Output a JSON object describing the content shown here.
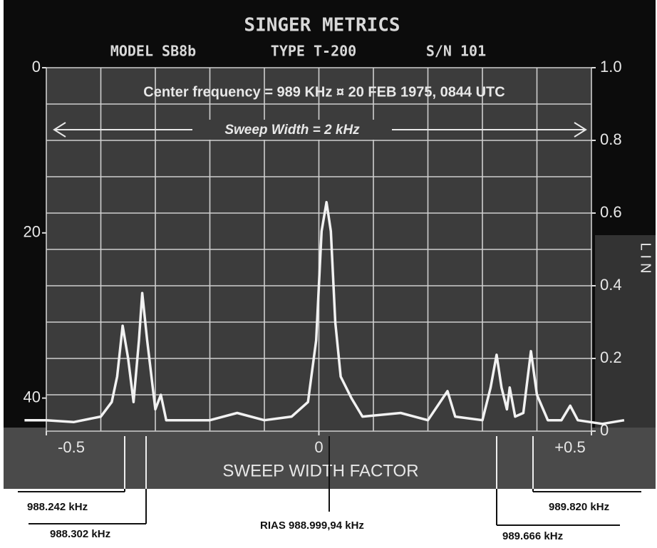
{
  "chart_data": {
    "type": "line",
    "title": "SINGER METRICS",
    "header": [
      "MODEL SB8b",
      "TYPE T-200",
      "S/N 101"
    ],
    "subtitle": "Center frequency = 989 KHz ¤ 20 FEB 1975, 0844 UTC",
    "sweep_label": "Sweep Width = 2 kHz",
    "x_label": "SWEEP WIDTH FACTOR",
    "y_label": "LIN",
    "xlim": [
      -0.5,
      0.5
    ],
    "xticks": [
      -0.5,
      0,
      {
        "value": 0.5,
        "label": "+0.5"
      }
    ],
    "ylim": [
      0,
      1
    ],
    "yticks": [
      0,
      0.2,
      0.4,
      0.6,
      0.8,
      {
        "value": 1,
        "label": "1.0"
      }
    ],
    "y2lim": [
      44,
      0
    ],
    "y2ticks": [
      0,
      20,
      40
    ],
    "grid": true,
    "series": [
      {
        "color": "#f2f2f2",
        "x": [
          -0.54,
          -0.5,
          -0.45,
          -0.4,
          -0.38,
          -0.37,
          -0.36,
          -0.35,
          -0.34,
          -0.33,
          -0.324,
          -0.315,
          -0.3,
          -0.29,
          -0.28,
          -0.2,
          -0.15,
          -0.1,
          -0.05,
          -0.02,
          -0.005,
          0.005,
          0.014,
          0.022,
          0.03,
          0.04,
          0.06,
          0.08,
          0.15,
          0.2,
          0.236,
          0.25,
          0.3,
          0.315,
          0.326,
          0.335,
          0.345,
          0.35,
          0.36,
          0.375,
          0.389,
          0.4,
          0.42,
          0.445,
          0.461,
          0.475,
          0.52,
          0.56
        ],
        "values": [
          0.03,
          0.03,
          0.025,
          0.04,
          0.08,
          0.15,
          0.29,
          0.2,
          0.08,
          0.25,
          0.38,
          0.25,
          0.06,
          0.1,
          0.03,
          0.03,
          0.05,
          0.03,
          0.04,
          0.08,
          0.25,
          0.55,
          0.63,
          0.55,
          0.3,
          0.15,
          0.09,
          0.04,
          0.05,
          0.03,
          0.11,
          0.04,
          0.03,
          0.12,
          0.21,
          0.12,
          0.06,
          0.12,
          0.04,
          0.05,
          0.22,
          0.1,
          0.03,
          0.03,
          0.07,
          0.03,
          0.02,
          0.03
        ]
      }
    ],
    "annotations": [
      "988.242 kHz",
      "988.302 kHz",
      "RIAS  988.999,94 kHz",
      "989.666 kHz",
      "989.820 kHz"
    ]
  }
}
